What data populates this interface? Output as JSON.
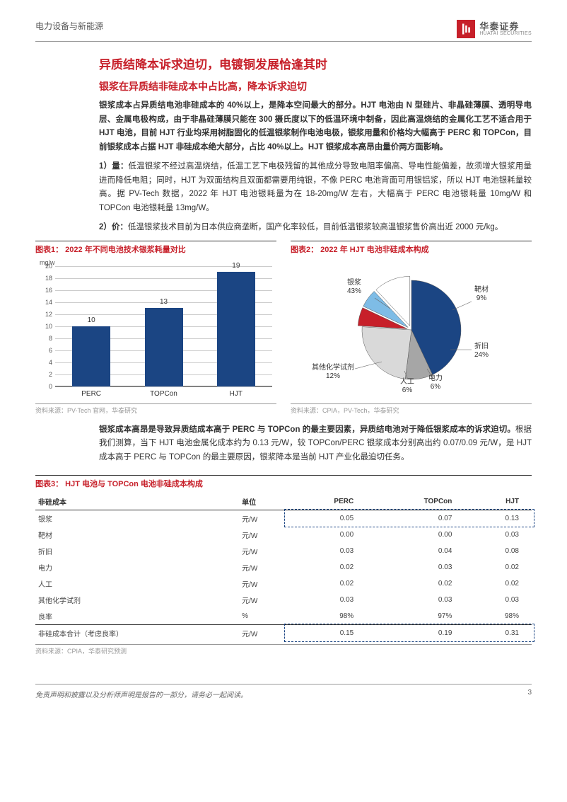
{
  "header": {
    "category": "电力设备与新能源",
    "logo_cn": "华泰证券",
    "logo_en": "HUATAI SECURITIES"
  },
  "title": "异质结降本诉求迫切，电镀铜发展恰逢其时",
  "subtitle": "银浆在异质结非硅成本中占比高，降本诉求迫切",
  "para1": "银浆成本占异质结电池非硅成本的 40%以上，是降本空间最大的部分。HJT 电池由 N 型硅片、非晶硅薄膜、透明导电层、金属电极构成，由于非晶硅薄膜只能在 300 摄氏度以下的低温环境中制备，因此高温烧结的金属化工艺不适合用于 HJT 电池，目前 HJT 行业均采用树脂固化的低温银浆制作电池电极，银浆用量和价格均大幅高于 PERC 和 TOPCon，目前银浆成本占据 HJT 非硅成本绝大部分，占比 40%以上。HJT 银浆成本高昂由量价两方面影响。",
  "para2_label": "1）量：",
  "para2": "低温银浆不经过高温烧结，低温工艺下电极残留的其他成分导致电阻率偏高、导电性能偏差，故须增大银浆用量进而降低电阻；同时，HJT 为双面结构且双面都需要用纯银，不像 PERC 电池背面可用银铝浆，所以 HJT 电池银耗量较高。据 PV-Tech 数据，2022 年 HJT 电池银耗量为在 18-20mg/W 左右，大幅高于 PERC 电池银耗量 10mg/W 和 TOPCon 电池银耗量 13mg/W。",
  "para3_label": "2）价：",
  "para3": "低温银浆技术目前为日本供应商垄断，国产化率较低，目前低温银浆较高温银浆售价高出近 2000 元/kg。",
  "chart1": {
    "title": "图表1： 2022 年不同电池技术银浆耗量对比",
    "y_axis_label": "mg/w",
    "y_max": 20,
    "y_ticks": [
      0,
      2,
      4,
      6,
      8,
      10,
      12,
      14,
      16,
      18,
      20
    ],
    "bars": [
      {
        "label": "PERC",
        "value": 10
      },
      {
        "label": "TOPCon",
        "value": 13
      },
      {
        "label": "HJT",
        "value": 19
      }
    ],
    "bar_color": "#1b4583",
    "source": "资料来源：PV-Tech 官网，华泰研究"
  },
  "chart2": {
    "title": "图表2： 2022 年 HJT 电池非硅成本构成",
    "slices": [
      {
        "label": "银浆",
        "pct": "43%",
        "color": "#1b4583"
      },
      {
        "label": "靶材",
        "pct": "9%",
        "color": "#a6a6a6"
      },
      {
        "label": "折旧",
        "pct": "24%",
        "color": "#d9d9d9"
      },
      {
        "label": "电力",
        "pct": "6%",
        "color": "#c7202a"
      },
      {
        "label": "人工",
        "pct": "6%",
        "color": "#7ebce6"
      },
      {
        "label": "其他化学试剂",
        "pct": "12%",
        "color": "#ffffff"
      }
    ],
    "source": "资料来源：CPIA，PV-Tech，华泰研究"
  },
  "para4_bold": "银浆成本高昂是导致异质结成本高于 PERC 与 TOPCon 的最主要因素，异质结电池对于降低银浆成本的诉求迫切。",
  "para4": "根据我们测算，当下 HJT 电池金属化成本约为 0.13 元/W，较 TOPCon/PERC 银浆成本分别高出约 0.07/0.09 元/W，是 HJT 成本高于 PERC 与 TOPCon 的最主要原因，银浆降本是当前 HJT 产业化最迫切任务。",
  "table3": {
    "title": "图表3： HJT 电池与 TOPCon 电池非硅成本构成",
    "columns": [
      "非硅成本",
      "单位",
      "PERC",
      "TOPCon",
      "HJT"
    ],
    "rows": [
      [
        "银浆",
        "元/W",
        "0.05",
        "0.07",
        "0.13"
      ],
      [
        "靶材",
        "元/W",
        "0.00",
        "0.00",
        "0.03"
      ],
      [
        "折旧",
        "元/W",
        "0.03",
        "0.04",
        "0.08"
      ],
      [
        "电力",
        "元/W",
        "0.02",
        "0.03",
        "0.02"
      ],
      [
        "人工",
        "元/W",
        "0.02",
        "0.02",
        "0.02"
      ],
      [
        "其他化学试剂",
        "元/W",
        "0.03",
        "0.03",
        "0.03"
      ],
      [
        "良率",
        "%",
        "98%",
        "97%",
        "98%"
      ],
      [
        "非硅成本合计（考虑良率）",
        "元/W",
        "0.15",
        "0.19",
        "0.31"
      ]
    ],
    "source": "资料来源：CPIA，华泰研究预测"
  },
  "footer": {
    "disclaimer": "免责声明和披露以及分析师声明是报告的一部分，请务必一起阅读。",
    "page": "3"
  }
}
